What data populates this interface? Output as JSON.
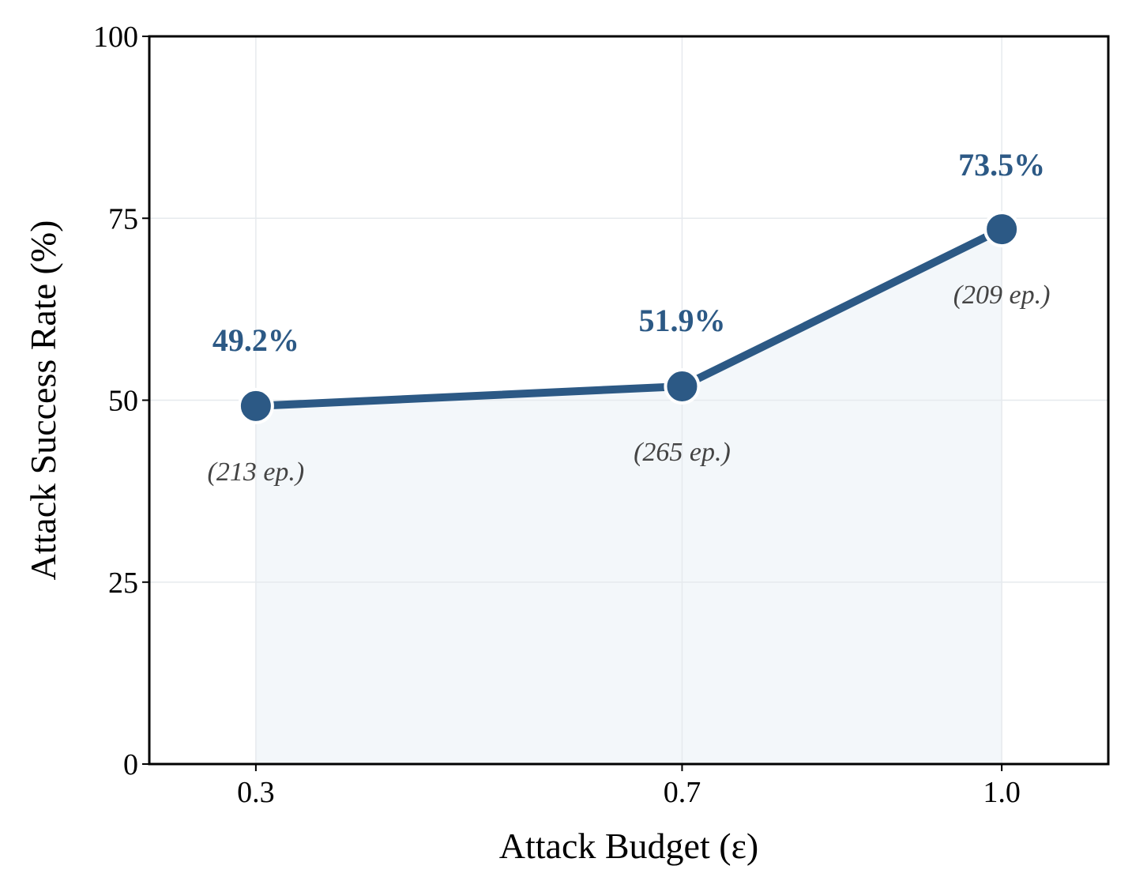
{
  "chart_data": {
    "type": "line",
    "x_categories": [
      "0.3",
      "0.7",
      "1.0"
    ],
    "x": [
      0.3,
      0.7,
      1.0
    ],
    "series": [
      {
        "values": [
          49.2,
          51.9,
          73.5
        ],
        "value_labels": [
          "49.2%",
          "51.9%",
          "73.5%"
        ],
        "count_labels": [
          "(213 ep.)",
          "(265 ep.)",
          "(209 ep.)"
        ]
      }
    ],
    "xlabel": "Attack Budget (ε)",
    "ylabel": "Attack Success Rate (%)",
    "xlim": [
      0.2,
      1.1
    ],
    "ylim": [
      0,
      100
    ],
    "yticks": [
      0,
      25,
      50,
      75,
      100
    ],
    "ytick_labels": [
      "0",
      "25",
      "50",
      "75",
      "100"
    ],
    "grid": true,
    "area_fill": true,
    "colors": {
      "line": "#2c5985",
      "fill": "#f3f7fa",
      "grid": "#e6eaee",
      "marker_edge": "#ffffff"
    }
  }
}
